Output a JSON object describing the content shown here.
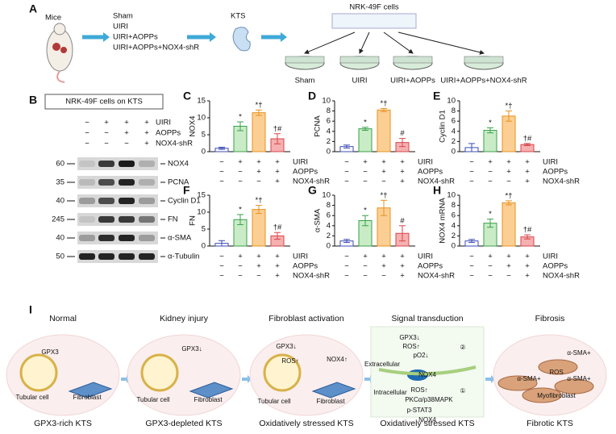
{
  "panel_a": {
    "label": "A",
    "mice": "Mice",
    "groups": [
      "Sham",
      "UIRI",
      "UIRI+AOPPs",
      "UIRI+AOPPs+NOX4-shR"
    ],
    "kts": "KTS",
    "cells": "NRK-49F cells",
    "dishes": [
      "Sham",
      "UIRI",
      "UIRI+AOPPs",
      "UIRI+AOPPs+NOX4-shR"
    ]
  },
  "panel_b": {
    "label": "B",
    "title": "NRK-49F cells on KTS",
    "treatments": [
      {
        "name": "UIRI",
        "signs": [
          "−",
          "+",
          "+",
          "+"
        ]
      },
      {
        "name": "AOPPs",
        "signs": [
          "−",
          "−",
          "+",
          "+"
        ]
      },
      {
        "name": "NOX4-shR",
        "signs": [
          "−",
          "−",
          "−",
          "+"
        ]
      }
    ],
    "blots": [
      {
        "marker": "60",
        "protein": "NOX4"
      },
      {
        "marker": "35",
        "protein": "PCNA"
      },
      {
        "marker": "40",
        "protein": "Cyclin D1"
      },
      {
        "marker": "245",
        "protein": "FN"
      },
      {
        "marker": "40",
        "protein": "α-SMA"
      },
      {
        "marker": "50",
        "protein": "α-Tubulin"
      }
    ]
  },
  "chart_data": [
    {
      "type": "bar",
      "label": "C",
      "y_label": "NOX4",
      "values": [
        1,
        7.5,
        11.5,
        3.8
      ],
      "errors": [
        0.3,
        1.3,
        0.8,
        1.5
      ],
      "annotations": [
        null,
        "*",
        "*†",
        "†#"
      ],
      "ylim": [
        0,
        15
      ],
      "yticks": [
        0,
        5,
        10,
        15
      ],
      "colors": [
        "#ffffff",
        "#c9ecc6",
        "#fbcf93",
        "#f5b0b0"
      ],
      "edge_colors": [
        "#3b4bb5",
        "#3aa04a",
        "#e8901e",
        "#d9444a"
      ],
      "treatments": [
        {
          "name": "UIRI",
          "signs": [
            "−",
            "+",
            "+",
            "+"
          ]
        },
        {
          "name": "AOPPs",
          "signs": [
            "−",
            "−",
            "+",
            "+"
          ]
        },
        {
          "name": "NOX4-shR",
          "signs": [
            "−",
            "−",
            "−",
            "+"
          ]
        }
      ]
    },
    {
      "type": "bar",
      "label": "D",
      "y_label": "PCNA",
      "values": [
        1,
        4.5,
        8.2,
        1.8
      ],
      "errors": [
        0.3,
        0.3,
        0.3,
        0.8
      ],
      "annotations": [
        null,
        "*",
        "*†",
        "#"
      ],
      "ylim": [
        0,
        10
      ],
      "yticks": [
        0,
        2,
        4,
        6,
        8,
        10
      ],
      "colors": [
        "#ffffff",
        "#c9ecc6",
        "#fbcf93",
        "#f5b0b0"
      ],
      "edge_colors": [
        "#3b4bb5",
        "#3aa04a",
        "#e8901e",
        "#d9444a"
      ],
      "treatments": [
        {
          "name": "UIRI",
          "signs": [
            "−",
            "+",
            "+",
            "+"
          ]
        },
        {
          "name": "AOPPs",
          "signs": [
            "−",
            "−",
            "+",
            "+"
          ]
        },
        {
          "name": "NOX4-shR",
          "signs": [
            "−",
            "−",
            "−",
            "+"
          ]
        }
      ]
    },
    {
      "type": "bar",
      "label": "E",
      "y_label": "Cyclin D1",
      "values": [
        0.8,
        4.2,
        7,
        1.4
      ],
      "errors": [
        0.8,
        0.5,
        1,
        0.2
      ],
      "annotations": [
        null,
        "*",
        "*†",
        "†#"
      ],
      "ylim": [
        0,
        10
      ],
      "yticks": [
        0,
        2,
        4,
        6,
        8,
        10
      ],
      "colors": [
        "#ffffff",
        "#c9ecc6",
        "#fbcf93",
        "#f5b0b0"
      ],
      "edge_colors": [
        "#3b4bb5",
        "#3aa04a",
        "#e8901e",
        "#d9444a"
      ],
      "treatments": [
        {
          "name": "UIRI",
          "signs": [
            "−",
            "+",
            "+",
            "+"
          ]
        },
        {
          "name": "AOPPs",
          "signs": [
            "−",
            "−",
            "+",
            "+"
          ]
        },
        {
          "name": "NOX4-shR",
          "signs": [
            "−",
            "−",
            "−",
            "+"
          ]
        }
      ]
    },
    {
      "type": "bar",
      "label": "F",
      "y_label": "FN",
      "values": [
        0.8,
        7.8,
        10.8,
        3
      ],
      "errors": [
        0.8,
        1.5,
        1.2,
        1
      ],
      "annotations": [
        null,
        "*",
        "*†",
        "†#"
      ],
      "ylim": [
        0,
        15
      ],
      "yticks": [
        0,
        5,
        10,
        15
      ],
      "colors": [
        "#ffffff",
        "#c9ecc6",
        "#fbcf93",
        "#f5b0b0"
      ],
      "edge_colors": [
        "#3b4bb5",
        "#3aa04a",
        "#e8901e",
        "#d9444a"
      ],
      "treatments": [
        {
          "name": "UIRI",
          "signs": [
            "−",
            "+",
            "+",
            "+"
          ]
        },
        {
          "name": "AOPPs",
          "signs": [
            "−",
            "−",
            "+",
            "+"
          ]
        },
        {
          "name": "NOX4-shR",
          "signs": [
            "−",
            "−",
            "−",
            "+"
          ]
        }
      ]
    },
    {
      "type": "bar",
      "label": "G",
      "y_label": "α-SMA",
      "values": [
        1,
        5,
        7.5,
        2.5
      ],
      "errors": [
        0.3,
        1,
        1.5,
        1.5
      ],
      "annotations": [
        null,
        "*",
        "*†",
        "#"
      ],
      "ylim": [
        0,
        10
      ],
      "yticks": [
        0,
        2,
        4,
        6,
        8,
        10
      ],
      "colors": [
        "#ffffff",
        "#c9ecc6",
        "#fbcf93",
        "#f5b0b0"
      ],
      "edge_colors": [
        "#3b4bb5",
        "#3aa04a",
        "#e8901e",
        "#d9444a"
      ],
      "treatments": [
        {
          "name": "UIRI",
          "signs": [
            "−",
            "+",
            "+",
            "+"
          ]
        },
        {
          "name": "AOPPs",
          "signs": [
            "−",
            "−",
            "+",
            "+"
          ]
        },
        {
          "name": "NOX4-shR",
          "signs": [
            "−",
            "−",
            "−",
            "+"
          ]
        }
      ]
    },
    {
      "type": "bar",
      "label": "H",
      "y_label": "NOX4 mRNA",
      "values": [
        1,
        4.5,
        8.5,
        1.8
      ],
      "errors": [
        0.3,
        0.8,
        0.4,
        0.4
      ],
      "annotations": [
        null,
        "*",
        "*†",
        "†#"
      ],
      "ylim": [
        0,
        10
      ],
      "yticks": [
        0,
        2,
        4,
        6,
        8,
        10
      ],
      "colors": [
        "#ffffff",
        "#c9ecc6",
        "#fbcf93",
        "#f5b0b0"
      ],
      "edge_colors": [
        "#3b4bb5",
        "#3aa04a",
        "#e8901e",
        "#d9444a"
      ],
      "treatments": [
        {
          "name": "UIRI",
          "signs": [
            "−",
            "+",
            "+",
            "+"
          ]
        },
        {
          "name": "AOPPs",
          "signs": [
            "−",
            "−",
            "+",
            "+"
          ]
        },
        {
          "name": "NOX4-shR",
          "signs": [
            "−",
            "−",
            "−",
            "+"
          ]
        }
      ]
    }
  ],
  "panel_i": {
    "label": "I",
    "stages": [
      {
        "title": "Normal",
        "caption": "GPX3-rich KTS",
        "labels": [
          "GPX3",
          "Tubular cell",
          "Fibroblast"
        ]
      },
      {
        "title": "Kidney injury",
        "caption": "GPX3-depleted KTS",
        "labels": [
          "GPX3↓",
          "Tubular cell",
          "Fibroblast"
        ]
      },
      {
        "title": "Fibroblast activation",
        "caption": "Oxidatively stressed KTS",
        "labels": [
          "GPX3↓",
          "ROS↑",
          "NOX4↑",
          "Tubular cell",
          "Fibroblast"
        ]
      },
      {
        "title": "Signal transduction",
        "caption": "Oxidatively stressed KTS",
        "labels": [
          "GPX3↓",
          "ROS↑",
          "pO2↓",
          "Extracellular",
          "NOX4",
          "Intracellular",
          "ROS↑",
          "PKCα/p38MAPK",
          "p-STAT3",
          "NOX4",
          "②",
          "①"
        ]
      },
      {
        "title": "Fibrosis",
        "caption": "Fibrotic KTS",
        "labels": [
          "α-SMA+",
          "ROS",
          "α-SMA+",
          "α-SMA+",
          "Myofibroblast"
        ]
      }
    ]
  }
}
